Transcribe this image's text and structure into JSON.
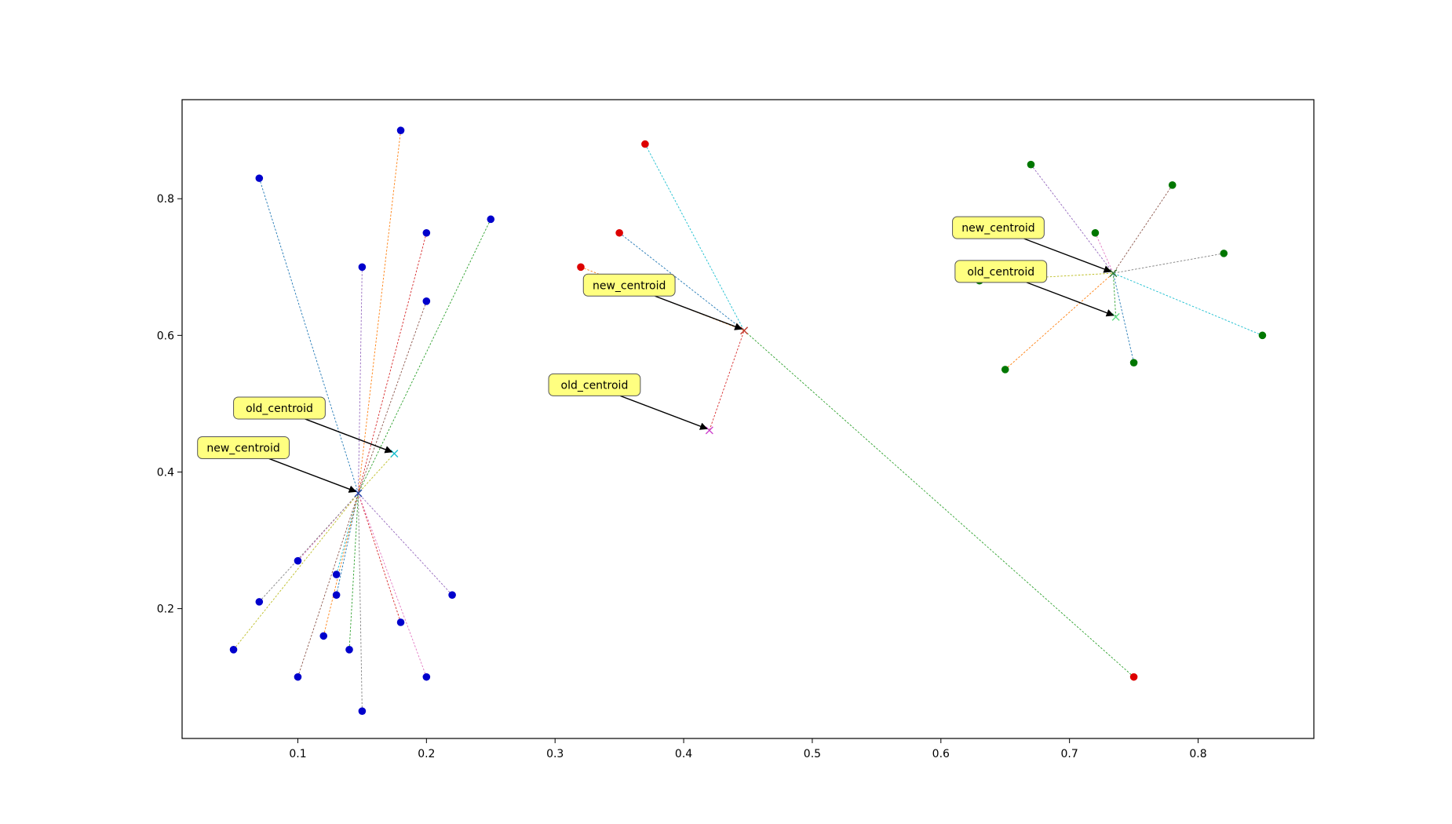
{
  "chart_data": {
    "type": "scatter",
    "title": "",
    "xlabel": "",
    "ylabel": "",
    "xlim": [
      0.01,
      0.89
    ],
    "ylim": [
      0.01,
      0.945
    ],
    "xticks": [
      "0.1",
      "0.2",
      "0.3",
      "0.4",
      "0.5",
      "0.6",
      "0.7",
      "0.8"
    ],
    "yticks": [
      "0.2",
      "0.4",
      "0.6",
      "0.8"
    ],
    "grid": false,
    "legend": "none",
    "clusters": [
      {
        "color": "#0000cc",
        "points": [
          [
            0.07,
            0.83
          ],
          [
            0.18,
            0.9
          ],
          [
            0.25,
            0.77
          ],
          [
            0.2,
            0.75
          ],
          [
            0.15,
            0.7
          ],
          [
            0.2,
            0.65
          ],
          [
            0.1,
            0.27
          ],
          [
            0.07,
            0.21
          ],
          [
            0.05,
            0.14
          ],
          [
            0.13,
            0.25
          ],
          [
            0.13,
            0.22
          ],
          [
            0.12,
            0.16
          ],
          [
            0.14,
            0.14
          ],
          [
            0.18,
            0.18
          ],
          [
            0.22,
            0.22
          ],
          [
            0.1,
            0.1
          ],
          [
            0.2,
            0.1
          ],
          [
            0.15,
            0.05
          ]
        ],
        "old_centroid": [
          0.175,
          0.427
        ],
        "new_centroid": [
          0.147,
          0.369
        ],
        "old_centroid_color": "#17becf",
        "new_centroid_color": "#1f3ea8"
      },
      {
        "color": "#dd0000",
        "points": [
          [
            0.37,
            0.88
          ],
          [
            0.35,
            0.75
          ],
          [
            0.32,
            0.7
          ],
          [
            0.75,
            0.1
          ]
        ],
        "old_centroid": [
          0.42,
          0.461
        ],
        "new_centroid": [
          0.447,
          0.607
        ],
        "old_centroid_color": "#cc44cc",
        "new_centroid_color": "#c0392b"
      },
      {
        "color": "#007700",
        "points": [
          [
            0.67,
            0.85
          ],
          [
            0.78,
            0.82
          ],
          [
            0.72,
            0.75
          ],
          [
            0.82,
            0.72
          ],
          [
            0.63,
            0.68
          ],
          [
            0.85,
            0.6
          ],
          [
            0.75,
            0.56
          ],
          [
            0.65,
            0.55
          ]
        ],
        "old_centroid": [
          0.736,
          0.627
        ],
        "new_centroid": [
          0.734,
          0.691
        ],
        "old_centroid_color": "#66dd88",
        "new_centroid_color": "#2e7d32"
      }
    ],
    "line_colors": [
      "#1f77b4",
      "#ff7f0e",
      "#2ca02c",
      "#d62728",
      "#9467bd",
      "#8c564b",
      "#e377c2",
      "#7f7f7f",
      "#bcbd22",
      "#17becf"
    ],
    "annotations": {
      "old_label": "old_centroid",
      "new_label": "new_centroid",
      "box_color": "#ffff80"
    }
  }
}
